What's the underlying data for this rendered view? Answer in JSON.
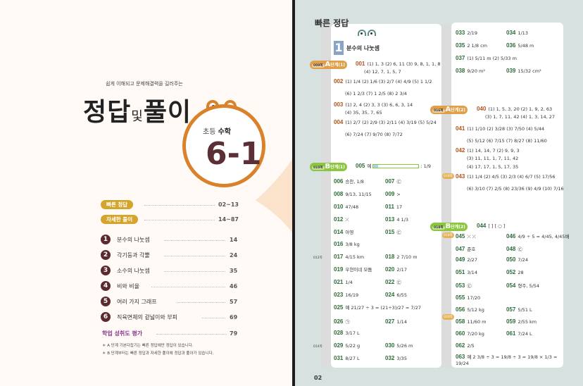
{
  "cover": {
    "subtitle": "쉽게 이해되고 문제해결력을 길러주는",
    "title_main_1": "정답",
    "title_and": "및",
    "title_main_2": "풀이",
    "grade_prefix": "초등",
    "subject": "수학",
    "volume": "6-1",
    "accent_color": "#d9822b",
    "volume_color": "#5b2f35"
  },
  "toc": {
    "sections": [
      {
        "label": "빠른 정답",
        "pages": "02~13"
      },
      {
        "label": "자세한 풀이",
        "pages": "14~87"
      }
    ],
    "chapters": [
      {
        "num": "1",
        "title": "분수의 나눗셈",
        "page": "14"
      },
      {
        "num": "2",
        "title": "각기둥과 각뿔",
        "page": "24"
      },
      {
        "num": "3",
        "title": "소수의 나눗셈",
        "page": "35"
      },
      {
        "num": "4",
        "title": "비와 비율",
        "page": "46"
      },
      {
        "num": "5",
        "title": "여러 가지 그래프",
        "page": "57"
      },
      {
        "num": "6",
        "title": "직육면체의 겉넓이와 부피",
        "page": "69"
      }
    ],
    "assessment": {
      "label": "학업 성취도 평가",
      "page": "79"
    },
    "notes": [
      "＊ A 단계 기본다잡기는 빠른 정답에만 정답이 있습니다.",
      "＊ B 단계부터는 빠른 정답과 자세한 풀이에 정답과 풀이가 있습니다."
    ]
  },
  "answers": {
    "header": "빠른 정답",
    "chapter_num": "1",
    "chapter_title": "분수의 나눗셈",
    "page_number": "02",
    "tags": [
      {
        "page": "009쪽",
        "stage": "A",
        "label": "단계(1)"
      },
      {
        "page": "010쪽",
        "stage": "B",
        "label": "단계(1)"
      },
      {
        "page": "016쪽",
        "stage": "A",
        "label": "단계(2)"
      },
      {
        "page": "018쪽",
        "stage": "B",
        "label": "단계(2)"
      }
    ],
    "side_refs": [
      "012쪽",
      "014쪽",
      "016쪽",
      "018쪽",
      "020쪽",
      "020쪽"
    ],
    "items": [
      {
        "no": "001",
        "text": "(1) 1, 3  (2) 6, 11  (3) 9, 8, 1, 1, 8",
        "text2": "(4) 12, 7, 1, 5, 7"
      },
      {
        "no": "002",
        "text": "(1) 1/4  (2) 1/6  (3) 2/7  (4) 4/9  (5) 1 1/2",
        "text2": "(6) 1 2/3  (7) 1 2/5  (8) 2 3/4"
      },
      {
        "no": "003",
        "text": "(1) 2, 4  (2) 3, 3  (3) 6, 6, 3, 14",
        "text2": "(4) 35, 35, 7, 65"
      },
      {
        "no": "004",
        "text": "(1) 2/7  (2) 2/9  (3) 2/11  (4) 3/19  (5) 5/24",
        "text2": "(6) 7/24  (7) 9/70  (8) 7/72"
      },
      {
        "no": "005",
        "text": "예",
        "text2": ": 1/9"
      },
      {
        "no": "006",
        "text": "승찬, 1/8"
      },
      {
        "no": "007",
        "text": "㉢"
      },
      {
        "no": "008",
        "text": "9/13, 11/15"
      },
      {
        "no": "009",
        "text": ">"
      },
      {
        "no": "010",
        "text": "47/48"
      },
      {
        "no": "011",
        "text": "17"
      },
      {
        "no": "012",
        "text": "⤫"
      },
      {
        "no": "013",
        "text": "4 1/3"
      },
      {
        "no": "014",
        "text": "아영"
      },
      {
        "no": "015",
        "text": "㉢"
      },
      {
        "no": "016",
        "text": "3/8 kg"
      },
      {
        "no": "017",
        "text": "4/15 km"
      },
      {
        "no": "018",
        "text": "2 7/10 m"
      },
      {
        "no": "019",
        "text": "우현이네 모둠"
      },
      {
        "no": "020",
        "text": "2/17"
      },
      {
        "no": "021",
        "text": "1/4"
      },
      {
        "no": "022",
        "text": "㉢"
      },
      {
        "no": "023",
        "text": "16/19"
      },
      {
        "no": "024",
        "text": "6/55"
      },
      {
        "no": "025",
        "text": "예 21/27 ÷ 3 = (21÷3)/27 = 7/27"
      },
      {
        "no": "026",
        "text": "㉠"
      },
      {
        "no": "027",
        "text": "1/14"
      },
      {
        "no": "028",
        "text": "3/17 L"
      },
      {
        "no": "029",
        "text": "5/22 g"
      },
      {
        "no": "030",
        "text": "5/26 m"
      },
      {
        "no": "031",
        "text": "8/27 L"
      },
      {
        "no": "032",
        "text": "3/35"
      },
      {
        "no": "033",
        "text": "2/19"
      },
      {
        "no": "034",
        "text": "1/13"
      },
      {
        "no": "035",
        "text": "2 1/8 cm"
      },
      {
        "no": "036",
        "text": "5/48 m"
      },
      {
        "no": "037",
        "text": "(1) 5/11 m  (2) 5/33 m"
      },
      {
        "no": "038",
        "text": "9/20 m²"
      },
      {
        "no": "039",
        "text": "15/32 cm²"
      },
      {
        "no": "040",
        "text": "(1) 1, 5, 3, 20  (2) 1, 9, 2, 63",
        "text2": "(3) 1, 7, 11, 42  (4) 1, 3, 14, 27"
      },
      {
        "no": "041",
        "text": "(1) 1/10  (2) 3/28  (3) 7/50  (4) 5/44",
        "text2": "(5) 5/12  (6) 7/15  (7) 8/27  (8) 11/60"
      },
      {
        "no": "042",
        "text": "(1) 14, 14, 7  (2) 9, 9, 3",
        "text2": "(3) 11, 11, 1, 7, 11, 42",
        "text3": "(4) 17, 17, 1, 5, 17, 35"
      },
      {
        "no": "043",
        "text": "(1) 1/4  (2) 4/5  (3) 2/3  (4) 6/7  (5) 17/56",
        "text2": "(6) 3/10  (7) 2/5  (8) 23/36  (9) 4/9  (10) 7/16"
      },
      {
        "no": "044",
        "text": "[        ] [ ○ ]"
      },
      {
        "no": "045",
        "text": "⤫ ⤫"
      },
      {
        "no": "046",
        "text": "4/9 ÷ 5 = 4/45, 4/45배"
      },
      {
        "no": "047",
        "text": "준호"
      },
      {
        "no": "048",
        "text": "㉢"
      },
      {
        "no": "049",
        "text": "2/27"
      },
      {
        "no": "050",
        "text": "7/24"
      },
      {
        "no": "051",
        "text": "3/14"
      },
      {
        "no": "052",
        "text": "28"
      },
      {
        "no": "053",
        "text": "㉢"
      },
      {
        "no": "054",
        "text": "형주, 5/54"
      },
      {
        "no": "055",
        "text": "17/20"
      },
      {
        "no": "056",
        "text": "5/12 kg"
      },
      {
        "no": "057",
        "text": "5/51 L"
      },
      {
        "no": "058",
        "text": "11/60 m"
      },
      {
        "no": "059",
        "text": "2/55 km"
      },
      {
        "no": "060",
        "text": "7/20 kg"
      },
      {
        "no": "061",
        "text": "7/24 L"
      },
      {
        "no": "062",
        "text": "2/5"
      },
      {
        "no": "063",
        "text": "예 2 3/8 ÷ 3 = 19/8 ÷ 3 = 19/8 × 1/3 = 19/24"
      }
    ],
    "colors": {
      "stage_a": "#b5521b",
      "stage_b": "#2e6b3a",
      "tag_a": "#e0a04a",
      "tag_b": "#8cc63f"
    }
  }
}
